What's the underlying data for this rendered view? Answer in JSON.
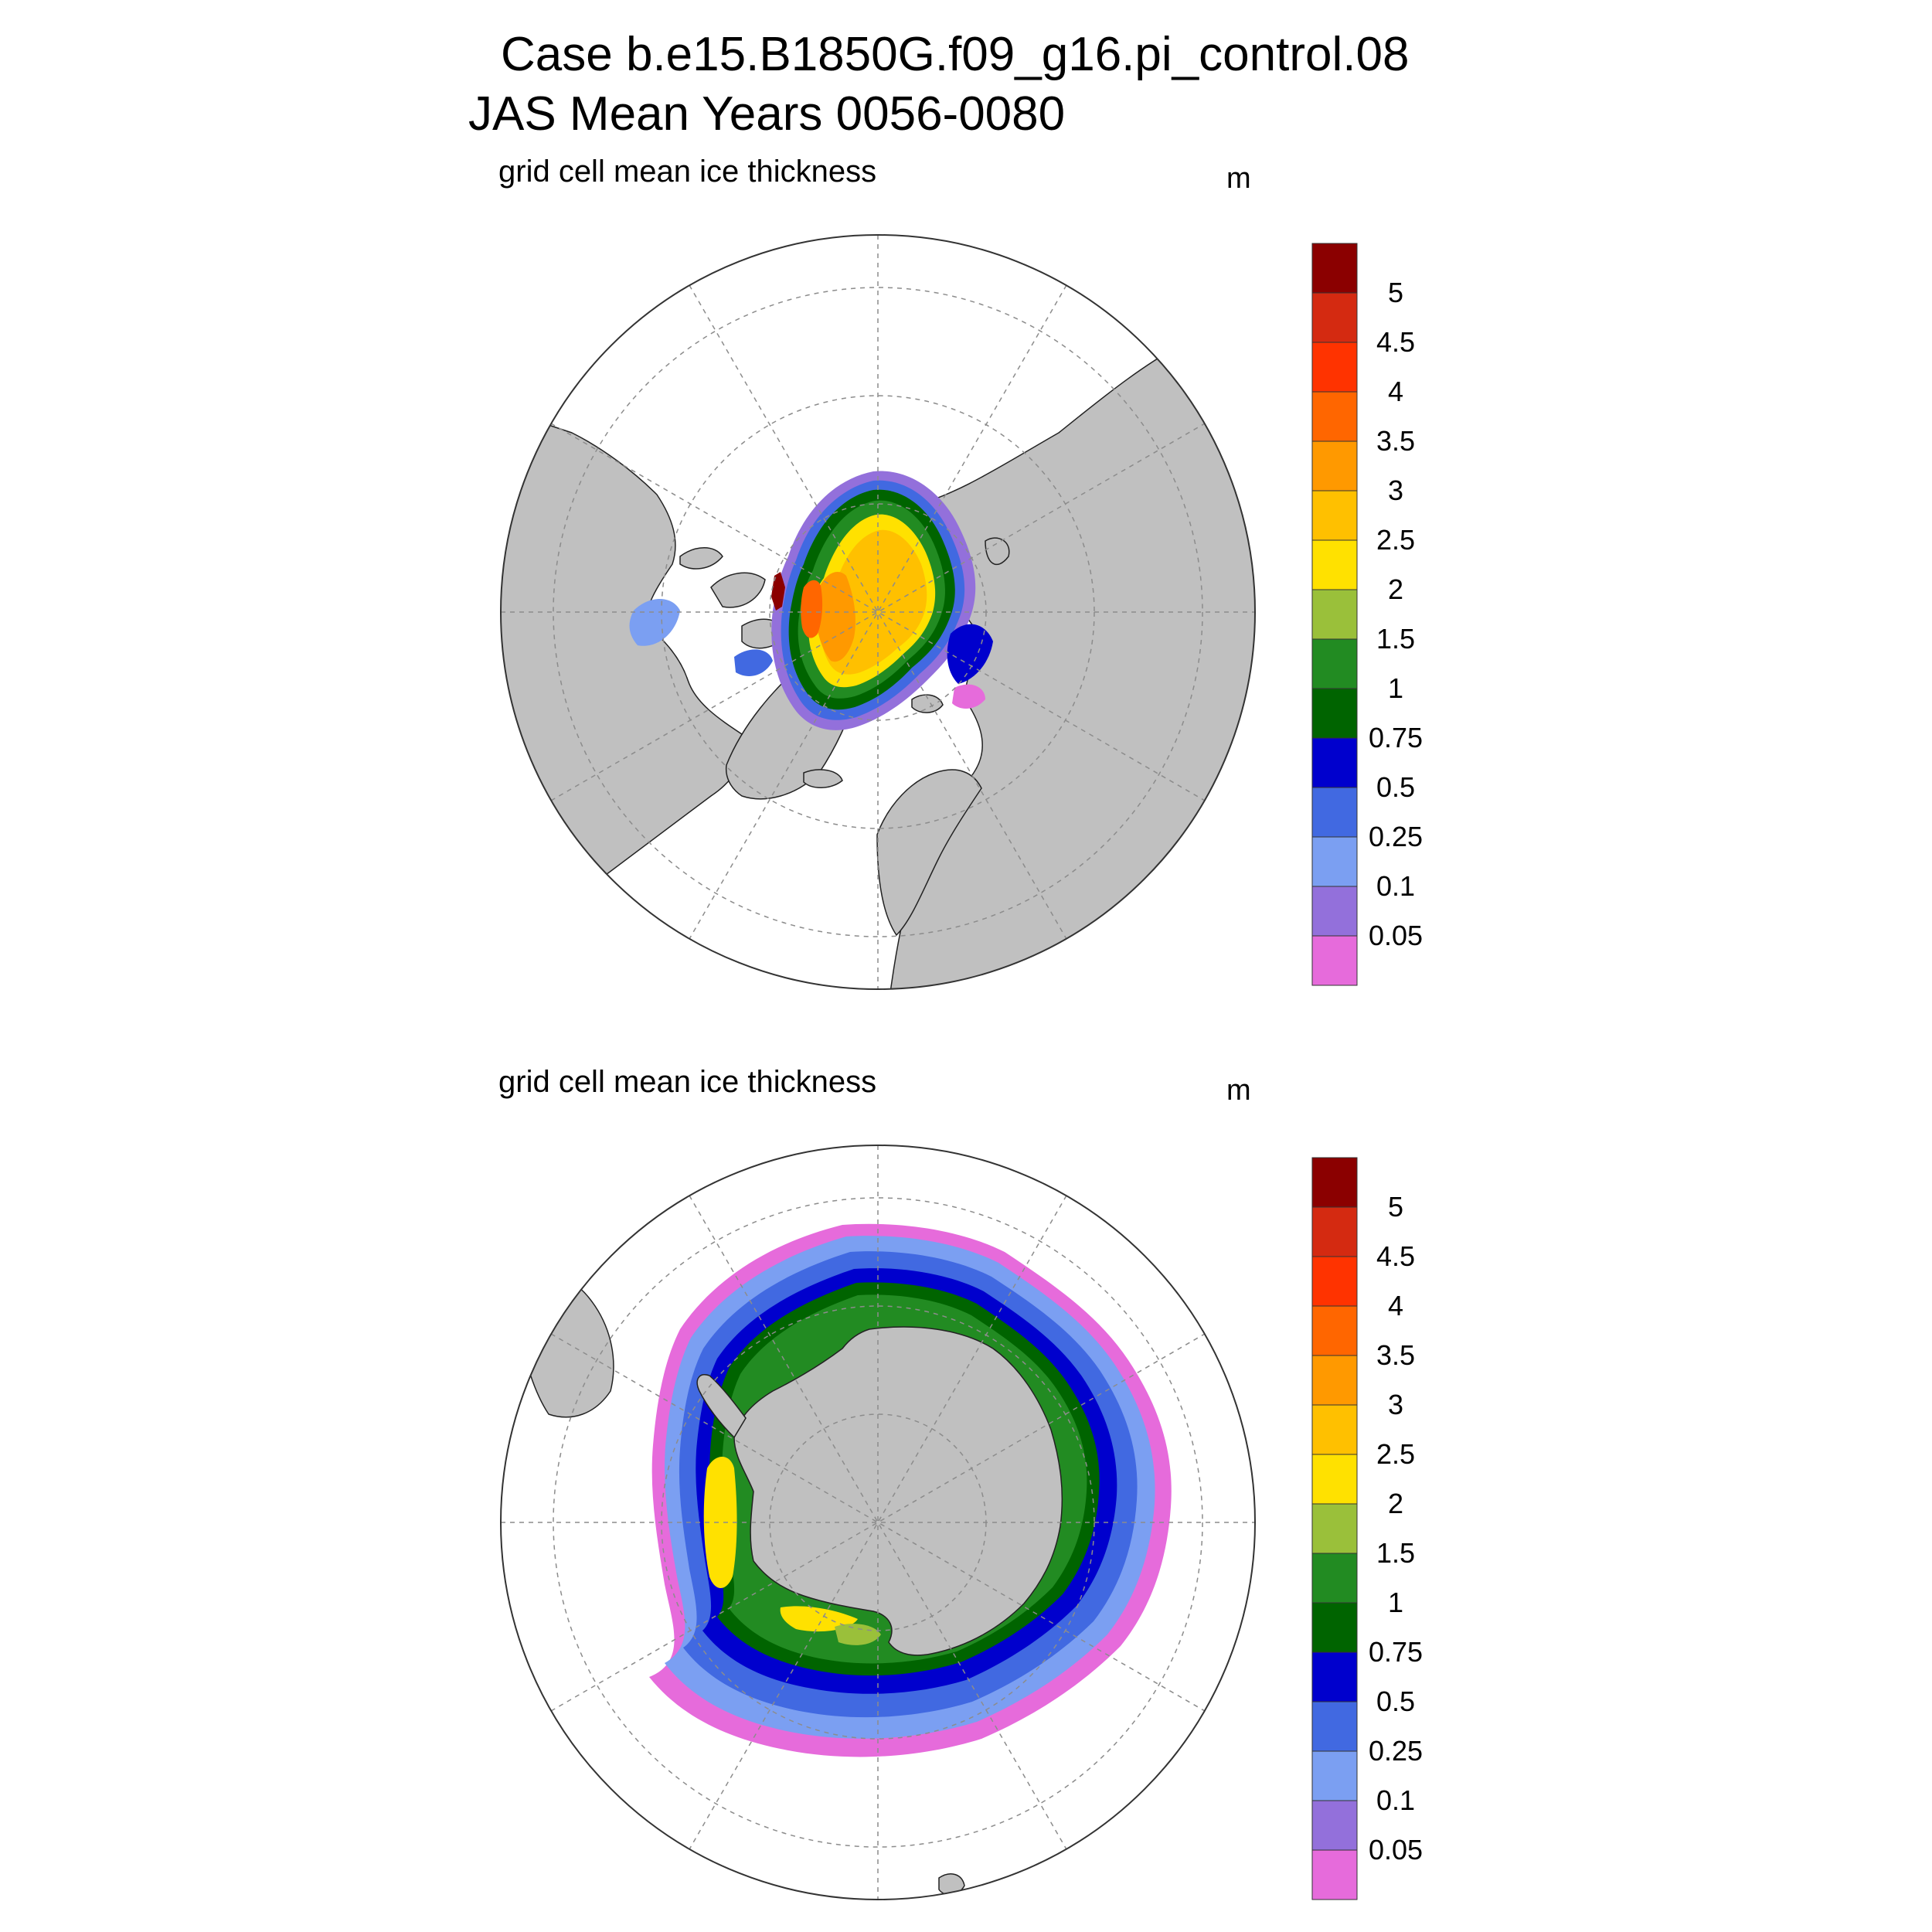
{
  "header": {
    "title_line1": "Case b.e15.B1850G.f09_g16.pi_control.08",
    "title_line2": "JAS Mean   Years 0056-0080"
  },
  "panels": [
    {
      "id": "arctic",
      "title": "grid cell mean ice thickness",
      "unit": "m",
      "hemisphere": "north"
    },
    {
      "id": "antarctic",
      "title": "grid cell mean ice thickness",
      "unit": "m",
      "hemisphere": "south"
    }
  ],
  "colorbar": {
    "labels": [
      "5",
      "4.5",
      "4",
      "3.5",
      "3",
      "2.5",
      "2",
      "1.5",
      "1",
      "0.75",
      "0.5",
      "0.25",
      "0.1",
      "0.05"
    ],
    "colors": [
      "#8B0000",
      "#D42A11",
      "#FF3300",
      "#FF6600",
      "#FF9900",
      "#FFC000",
      "#FFE100",
      "#9AC03A",
      "#228B22",
      "#006400",
      "#0000CD",
      "#4169E1",
      "#7B9FF2",
      "#9370DB",
      "#E66BDB"
    ]
  },
  "colors": {
    "land": "#C0C0C0",
    "ocean": "#FFFFFF",
    "grid": "#8C8C8C"
  }
}
